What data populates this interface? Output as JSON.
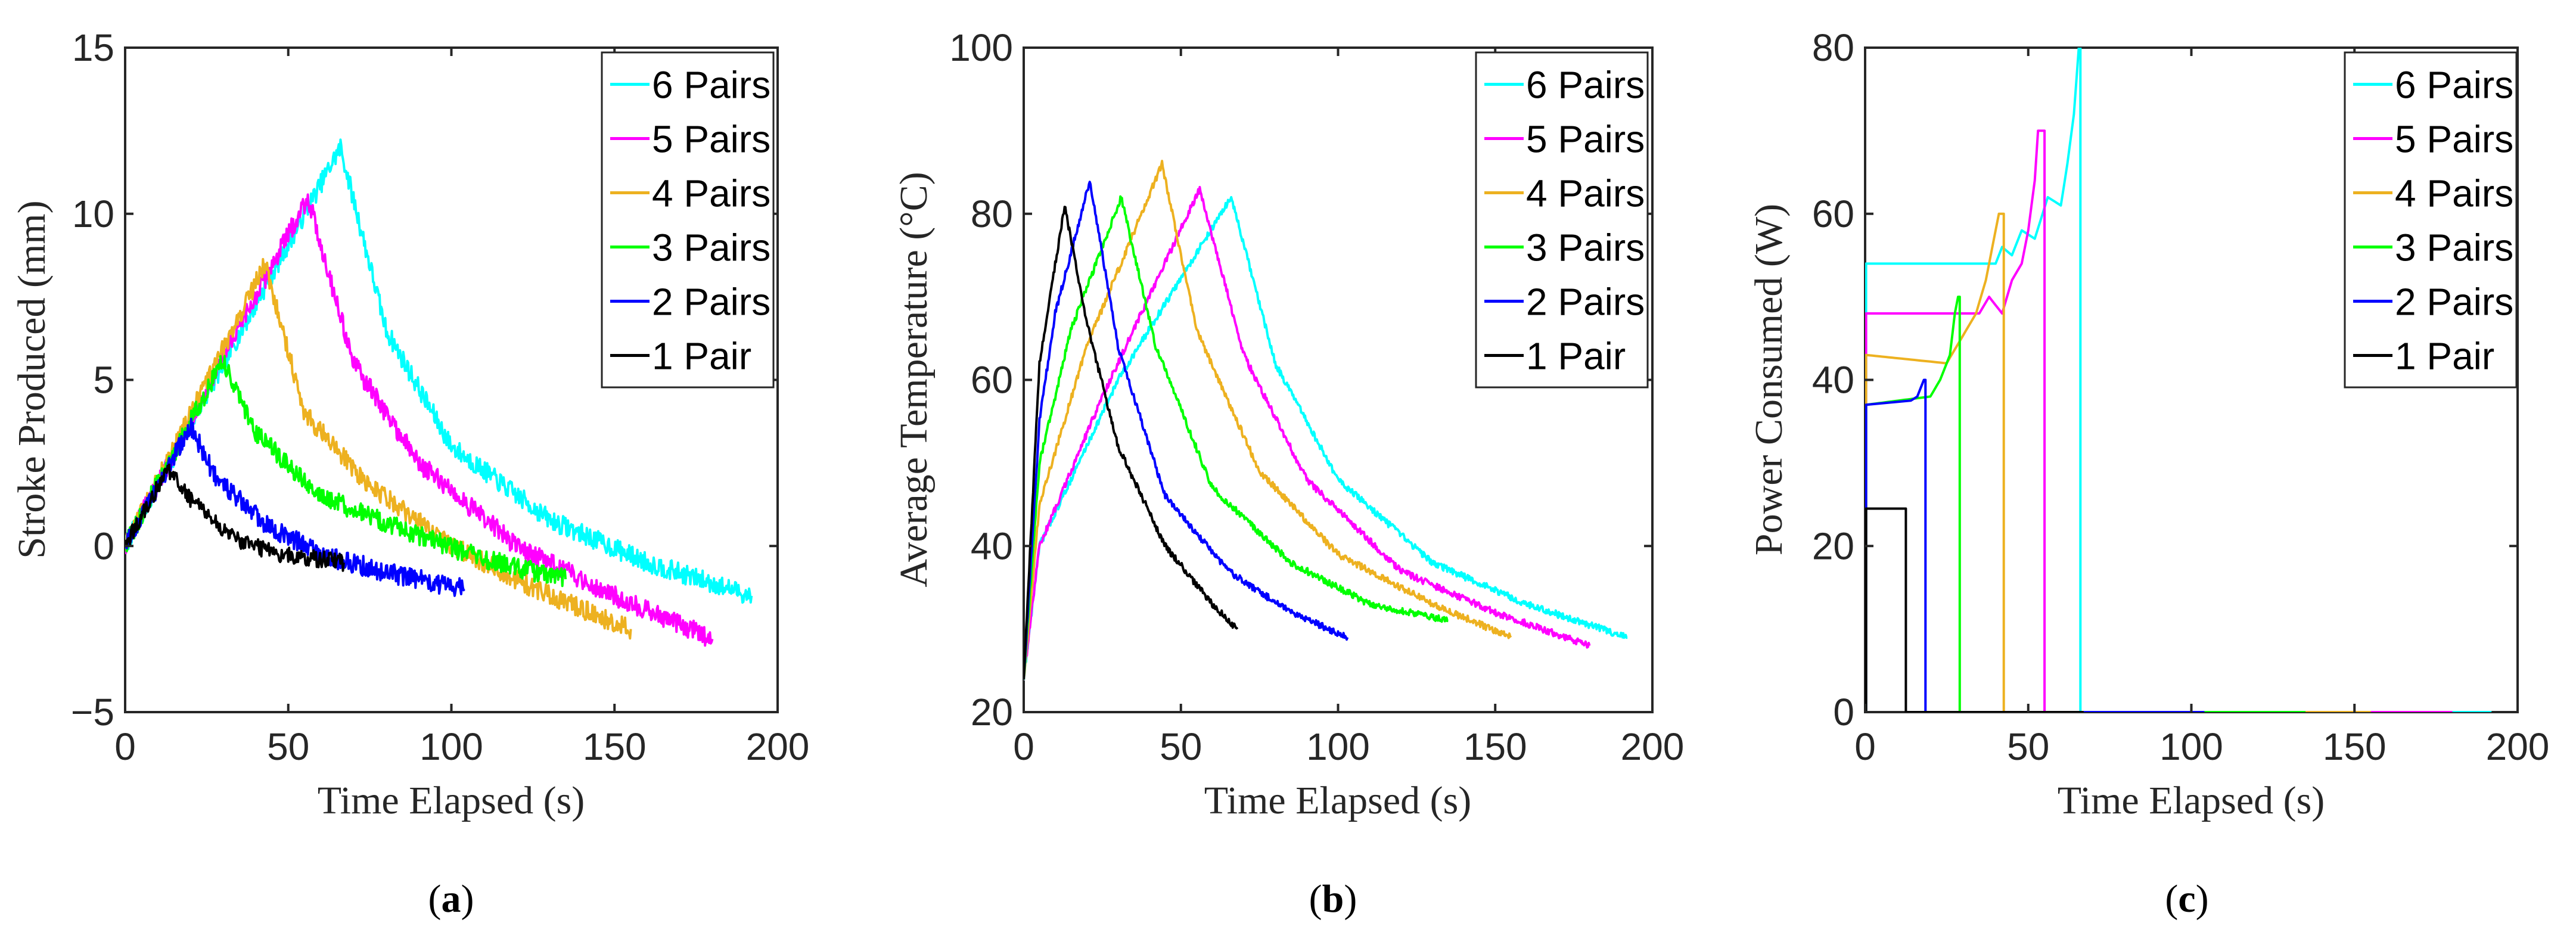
{
  "series_colors": {
    "6 Pairs": "#00FFFF",
    "5 Pairs": "#FF00FF",
    "4 Pairs": "#EDB120",
    "3 Pairs": "#00FF00",
    "2 Pairs": "#0000FF",
    "1 Pair": "#000000"
  },
  "chart_data": [
    {
      "id": "a",
      "type": "line",
      "caption": "a",
      "xlabel": "Time Elapsed (s)",
      "ylabel": "Stroke Produced (mm)",
      "xlim": [
        0,
        200
      ],
      "ylim": [
        -5,
        15
      ],
      "xticks": [
        0,
        50,
        100,
        150,
        200
      ],
      "yticks": [
        -5,
        0,
        5,
        10,
        15
      ],
      "xtick_labels": [
        "0",
        "50",
        "100",
        "150",
        "200"
      ],
      "ytick_labels": [
        "−5",
        "0",
        "5",
        "10",
        "15"
      ],
      "legend_position": "top-right",
      "series": [
        {
          "name": "6 Pairs",
          "noise": 0.3,
          "x": [
            0,
            66,
            80,
            100,
            130,
            160,
            192
          ],
          "y": [
            0,
            12,
            6.5,
            3,
            0.8,
            -0.5,
            -1.5
          ]
        },
        {
          "name": "5 Pairs",
          "noise": 0.3,
          "x": [
            0,
            56,
            70,
            90,
            120,
            150,
            180
          ],
          "y": [
            0,
            10.5,
            5.5,
            2.5,
            0,
            -1.5,
            -2.8
          ]
        },
        {
          "name": "4 Pairs",
          "noise": 0.3,
          "x": [
            0,
            43,
            55,
            75,
            100,
            130,
            155
          ],
          "y": [
            0,
            8.5,
            4,
            1.8,
            0,
            -1.5,
            -2.5
          ]
        },
        {
          "name": "3 Pairs",
          "noise": 0.3,
          "x": [
            0,
            30,
            40,
            60,
            85,
            110,
            135
          ],
          "y": [
            0,
            5.6,
            3.4,
            1.5,
            0.5,
            -0.4,
            -1
          ]
        },
        {
          "name": "2 Pairs",
          "noise": 0.3,
          "x": [
            0,
            20,
            28,
            45,
            65,
            85,
            104
          ],
          "y": [
            0,
            3.6,
            2,
            0.5,
            -0.4,
            -0.9,
            -1.3
          ]
        },
        {
          "name": "1 Pair",
          "noise": 0.25,
          "x": [
            0,
            13,
            20,
            32,
            45,
            60,
            67
          ],
          "y": [
            0,
            2.3,
            1.4,
            0.3,
            -0.2,
            -0.4,
            -0.5
          ]
        }
      ]
    },
    {
      "id": "b",
      "type": "line",
      "caption": "b",
      "xlabel": "Time Elapsed (s)",
      "ylabel": "Average Temperature (°C)",
      "xlim": [
        0,
        200
      ],
      "ylim": [
        20,
        100
      ],
      "xticks": [
        0,
        50,
        100,
        150,
        200
      ],
      "yticks": [
        20,
        40,
        60,
        80,
        100
      ],
      "xtick_labels": [
        "0",
        "50",
        "100",
        "150",
        "200"
      ],
      "ytick_labels": [
        "20",
        "40",
        "60",
        "80",
        "100"
      ],
      "legend_position": "top-right",
      "series": [
        {
          "name": "6 Pairs",
          "noise": 0.4,
          "x": [
            0,
            5,
            30,
            66,
            80,
            100,
            130,
            160,
            192
          ],
          "y": [
            24,
            40,
            60,
            82,
            62,
            48,
            38,
            33,
            29
          ]
        },
        {
          "name": "5 Pairs",
          "noise": 0.4,
          "x": [
            0,
            5,
            25,
            56,
            70,
            90,
            120,
            150,
            180
          ],
          "y": [
            24,
            40,
            58,
            83,
            63,
            48,
            37,
            32,
            28
          ]
        },
        {
          "name": "4 Pairs",
          "noise": 0.4,
          "x": [
            0,
            5,
            20,
            44,
            55,
            75,
            100,
            130,
            155
          ],
          "y": [
            24,
            45,
            64,
            86,
            66,
            49,
            39,
            33,
            29
          ]
        },
        {
          "name": "3 Pairs",
          "noise": 0.4,
          "x": [
            0,
            5,
            15,
            31,
            42,
            60,
            85,
            110,
            135
          ],
          "y": [
            24,
            50,
            66,
            82,
            64,
            47,
            38,
            33,
            31
          ]
        },
        {
          "name": "2 Pairs",
          "noise": 0.4,
          "x": [
            0,
            5,
            10,
            21,
            30,
            45,
            65,
            85,
            103
          ],
          "y": [
            24,
            55,
            68,
            84,
            64,
            46,
            37,
            32,
            29
          ]
        },
        {
          "name": "1 Pair",
          "noise": 0.4,
          "x": [
            0,
            5,
            13,
            20,
            30,
            45,
            60,
            68
          ],
          "y": [
            24,
            62,
            81,
            67,
            52,
            40,
            33,
            30
          ]
        }
      ]
    },
    {
      "id": "c",
      "type": "line",
      "caption": "c",
      "xlabel": "Time Elapsed (s)",
      "ylabel": "Power Consumed (W)",
      "xlim": [
        0,
        200
      ],
      "ylim": [
        0,
        80
      ],
      "xticks": [
        0,
        50,
        100,
        150,
        200
      ],
      "yticks": [
        0,
        20,
        40,
        60,
        80
      ],
      "xtick_labels": [
        "0",
        "50",
        "100",
        "150",
        "200"
      ],
      "ytick_labels": [
        "0",
        "20",
        "40",
        "60",
        "80"
      ],
      "legend_position": "top-right",
      "series": [
        {
          "name": "6 Pairs",
          "noise": 0,
          "x": [
            0,
            0.3,
            0.3,
            40,
            42,
            45,
            48,
            52,
            56,
            60,
            62,
            64,
            65.5,
            66,
            66,
            192
          ],
          "y": [
            0,
            0,
            54,
            54,
            56,
            55,
            58,
            57,
            62,
            61,
            66,
            72,
            80,
            80,
            0,
            0
          ]
        },
        {
          "name": "5 Pairs",
          "noise": 0,
          "x": [
            0,
            0.3,
            0.3,
            35,
            38,
            42,
            45,
            48,
            50,
            52,
            53,
            55,
            55,
            180
          ],
          "y": [
            0,
            0,
            48,
            48,
            50,
            48,
            52,
            54,
            58,
            64,
            70,
            70,
            0,
            0
          ]
        },
        {
          "name": "4 Pairs",
          "noise": 0,
          "x": [
            0,
            0.3,
            0.3,
            25,
            28,
            31,
            34,
            37,
            39,
            41,
            42.5,
            42.5,
            155
          ],
          "y": [
            0,
            0,
            43,
            42,
            44,
            46,
            48,
            52,
            56,
            60,
            60,
            0,
            0
          ]
        },
        {
          "name": "3 Pairs",
          "noise": 0,
          "x": [
            0,
            0.3,
            0.3,
            20,
            23,
            26,
            27.5,
            28.5,
            29,
            29,
            135
          ],
          "y": [
            0,
            0,
            37,
            38,
            40,
            43,
            48,
            50,
            50,
            0,
            0
          ]
        },
        {
          "name": "2 Pairs",
          "noise": 0,
          "x": [
            0,
            0.3,
            0.3,
            14,
            16,
            17,
            18,
            18.5,
            18.5,
            104
          ],
          "y": [
            0,
            0,
            37,
            37.5,
            38,
            39,
            40,
            40,
            0,
            0
          ]
        },
        {
          "name": "1 Pair",
          "noise": 0,
          "x": [
            0,
            0.3,
            0.3,
            12.5,
            12.5,
            67
          ],
          "y": [
            0,
            0,
            24.5,
            24.5,
            0,
            0
          ]
        }
      ]
    }
  ]
}
